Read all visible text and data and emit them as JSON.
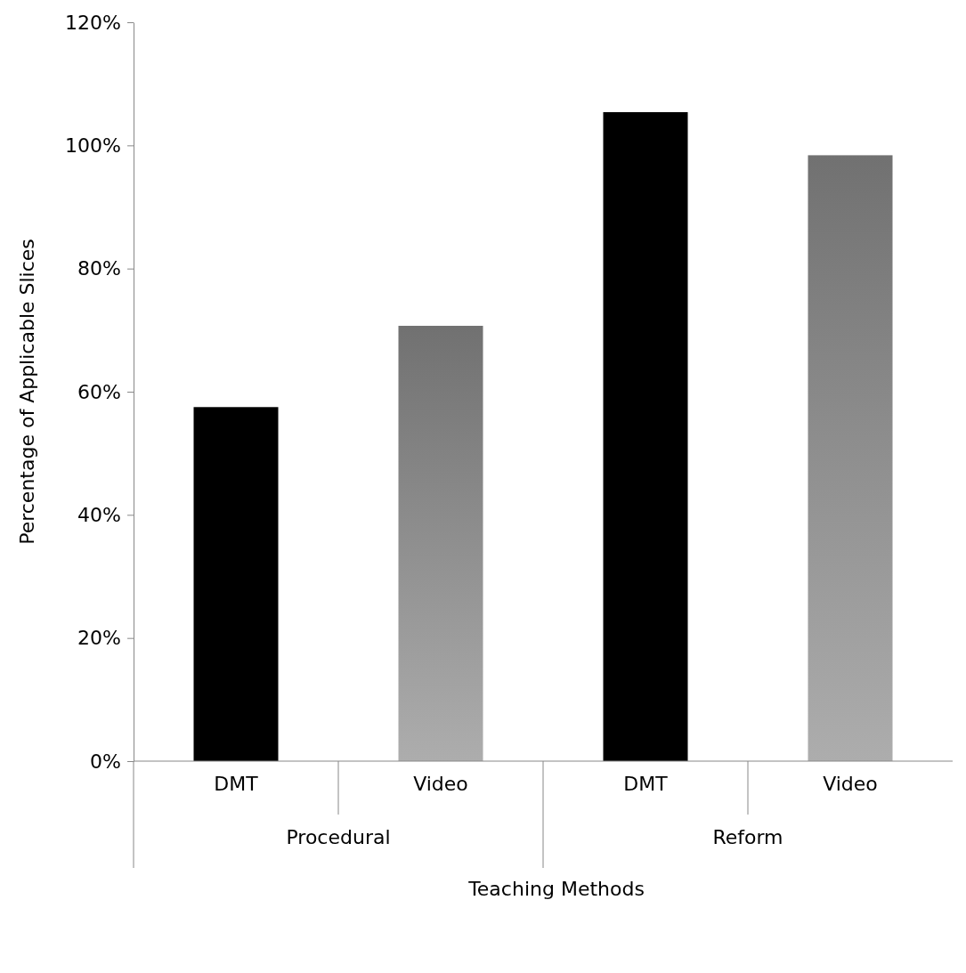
{
  "chart_data": {
    "type": "bar",
    "xlabel": "Teaching Methods",
    "ylabel": "Percentage of Applicable Slices",
    "categories": [
      "DMT",
      "Video",
      "DMT",
      "Video"
    ],
    "values": [
      57.5,
      70.7,
      105.4,
      98.4
    ],
    "colors": [
      "#000000",
      "#8c8c8c",
      "#000000",
      "#8c8c8c"
    ],
    "annotations": [
      "Procedural",
      "Reform"
    ],
    "ylim": [
      0,
      120
    ],
    "yticks": [
      {
        "value": 0,
        "label": "0%"
      },
      {
        "value": 20,
        "label": "20%"
      },
      {
        "value": 40,
        "label": "40%"
      },
      {
        "value": 60,
        "label": "60%"
      },
      {
        "value": 80,
        "label": "80%"
      },
      {
        "value": 100,
        "label": "100%"
      },
      {
        "value": 120,
        "label": "120%"
      }
    ],
    "grid": false
  }
}
